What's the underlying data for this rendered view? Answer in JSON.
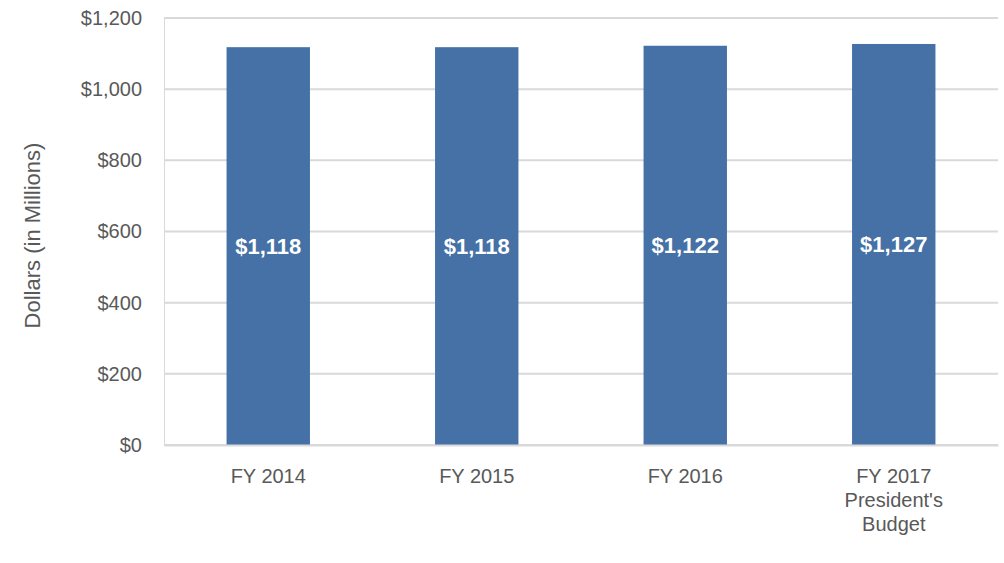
{
  "chart_data": {
    "type": "bar",
    "y_label": "Dollars (in Millions)",
    "categories": [
      "FY 2014",
      "FY 2015",
      "FY 2016",
      "FY 2017 President's Budget"
    ],
    "values": [
      1118,
      1118,
      1122,
      1127
    ],
    "value_labels": [
      "$1,118",
      "$1,118",
      "$1,122",
      "$1,127"
    ],
    "data_labels": true,
    "color": "#4571a6",
    "ylim": [
      0,
      1200
    ],
    "yticks": [
      {
        "value": 0,
        "label": "$0"
      },
      {
        "value": 200,
        "label": "$200"
      },
      {
        "value": 400,
        "label": "$400"
      },
      {
        "value": 600,
        "label": "$600"
      },
      {
        "value": 800,
        "label": "$800"
      },
      {
        "value": 1000,
        "label": "$1,000"
      },
      {
        "value": 1200,
        "label": "$1,200"
      }
    ],
    "grid": true
  }
}
